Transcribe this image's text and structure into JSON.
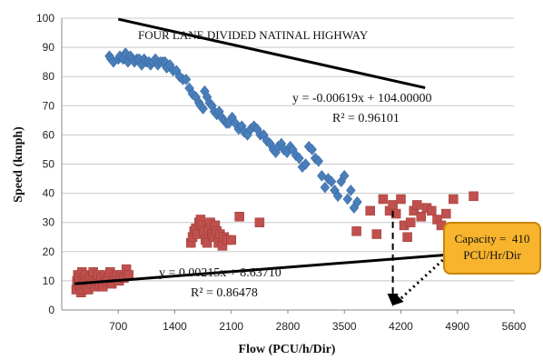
{
  "chart_data": {
    "type": "scatter",
    "title": "FOUR LANE DIVIDED NATINAL HIGHWAY",
    "xlabel": "Flow (PCU/h/Dir)",
    "ylabel": "Speed (kmph)",
    "xlim": [
      0,
      5600
    ],
    "ylim": [
      0,
      100
    ],
    "xticks": [
      "700",
      "1400",
      "2100",
      "2800",
      "3500",
      "4200",
      "4900",
      "5600"
    ],
    "yticks": [
      "0",
      "10",
      "20",
      "30",
      "40",
      "50",
      "60",
      "70",
      "80",
      "90",
      "100"
    ],
    "grid": "horizontal",
    "series": [
      {
        "color": "#4a7ebb",
        "marker": "diamond",
        "points": [
          [
            590,
            87
          ],
          [
            610,
            86
          ],
          [
            640,
            85
          ],
          [
            700,
            86
          ],
          [
            720,
            87
          ],
          [
            760,
            86
          ],
          [
            790,
            88
          ],
          [
            820,
            85
          ],
          [
            850,
            87
          ],
          [
            880,
            86
          ],
          [
            900,
            85
          ],
          [
            930,
            86
          ],
          [
            960,
            86
          ],
          [
            990,
            84
          ],
          [
            1020,
            86
          ],
          [
            1050,
            85
          ],
          [
            1080,
            85
          ],
          [
            1100,
            84
          ],
          [
            1130,
            85
          ],
          [
            1160,
            86
          ],
          [
            1190,
            84
          ],
          [
            1220,
            85
          ],
          [
            1250,
            85
          ],
          [
            1280,
            85
          ],
          [
            1300,
            83
          ],
          [
            1340,
            84
          ],
          [
            1380,
            82
          ],
          [
            1420,
            82
          ],
          [
            1460,
            80
          ],
          [
            1500,
            79
          ],
          [
            1540,
            79
          ],
          [
            1580,
            76
          ],
          [
            1620,
            74
          ],
          [
            1660,
            73
          ],
          [
            1700,
            71
          ],
          [
            1720,
            70
          ],
          [
            1750,
            69
          ],
          [
            1770,
            75
          ],
          [
            1800,
            73
          ],
          [
            1830,
            71
          ],
          [
            1860,
            70
          ],
          [
            1890,
            68
          ],
          [
            1920,
            67
          ],
          [
            1950,
            68
          ],
          [
            1980,
            66
          ],
          [
            2010,
            65
          ],
          [
            2040,
            64
          ],
          [
            2070,
            64
          ],
          [
            2110,
            66
          ],
          [
            2150,
            64
          ],
          [
            2190,
            62
          ],
          [
            2230,
            63
          ],
          [
            2260,
            61
          ],
          [
            2300,
            60
          ],
          [
            2340,
            62
          ],
          [
            2380,
            63
          ],
          [
            2420,
            62
          ],
          [
            2460,
            60
          ],
          [
            2500,
            60
          ],
          [
            2540,
            58
          ],
          [
            2580,
            57
          ],
          [
            2620,
            55
          ],
          [
            2650,
            54
          ],
          [
            2680,
            56
          ],
          [
            2720,
            57
          ],
          [
            2750,
            55
          ],
          [
            2790,
            54
          ],
          [
            2830,
            56
          ],
          [
            2860,
            55
          ],
          [
            2900,
            53
          ],
          [
            2940,
            52
          ],
          [
            2980,
            49
          ],
          [
            3020,
            50
          ],
          [
            3060,
            56
          ],
          [
            3100,
            55
          ],
          [
            3140,
            52
          ],
          [
            3180,
            51
          ],
          [
            3220,
            46
          ],
          [
            3260,
            42
          ],
          [
            3300,
            45
          ],
          [
            3340,
            44
          ],
          [
            3380,
            41
          ],
          [
            3420,
            39
          ],
          [
            3460,
            44
          ],
          [
            3500,
            46
          ],
          [
            3540,
            38
          ],
          [
            3580,
            41
          ],
          [
            3620,
            35
          ],
          [
            3660,
            37
          ]
        ]
      },
      {
        "color": "#c0504d",
        "marker": "square",
        "points": [
          [
            180,
            7
          ],
          [
            190,
            10
          ],
          [
            200,
            12
          ],
          [
            210,
            9
          ],
          [
            220,
            11
          ],
          [
            230,
            8
          ],
          [
            240,
            6
          ],
          [
            250,
            13
          ],
          [
            260,
            10
          ],
          [
            270,
            7
          ],
          [
            280,
            11
          ],
          [
            290,
            9
          ],
          [
            300,
            12
          ],
          [
            310,
            8
          ],
          [
            320,
            10
          ],
          [
            330,
            7
          ],
          [
            350,
            11
          ],
          [
            370,
            9
          ],
          [
            390,
            13
          ],
          [
            410,
            8
          ],
          [
            430,
            10
          ],
          [
            450,
            12
          ],
          [
            470,
            9
          ],
          [
            490,
            11
          ],
          [
            510,
            8
          ],
          [
            540,
            12
          ],
          [
            560,
            10
          ],
          [
            580,
            11
          ],
          [
            600,
            13
          ],
          [
            620,
            9
          ],
          [
            650,
            11
          ],
          [
            680,
            12
          ],
          [
            710,
            10
          ],
          [
            740,
            12
          ],
          [
            770,
            11
          ],
          [
            800,
            14
          ],
          [
            830,
            12
          ],
          [
            1600,
            23
          ],
          [
            1620,
            25
          ],
          [
            1640,
            27
          ],
          [
            1660,
            28
          ],
          [
            1680,
            26
          ],
          [
            1700,
            30
          ],
          [
            1720,
            31
          ],
          [
            1740,
            29
          ],
          [
            1760,
            27
          ],
          [
            1780,
            24
          ],
          [
            1800,
            23
          ],
          [
            1820,
            28
          ],
          [
            1840,
            30
          ],
          [
            1860,
            26
          ],
          [
            1880,
            25
          ],
          [
            1900,
            29
          ],
          [
            1920,
            27
          ],
          [
            1940,
            23
          ],
          [
            1960,
            26
          ],
          [
            1990,
            22
          ],
          [
            2010,
            25
          ],
          [
            2050,
            24
          ],
          [
            2100,
            24
          ],
          [
            2200,
            32
          ],
          [
            2450,
            30
          ],
          [
            3650,
            27
          ],
          [
            3820,
            34
          ],
          [
            3900,
            26
          ],
          [
            3980,
            38
          ],
          [
            4060,
            34
          ],
          [
            4100,
            36
          ],
          [
            4140,
            33
          ],
          [
            4200,
            38
          ],
          [
            4240,
            29
          ],
          [
            4280,
            25
          ],
          [
            4320,
            30
          ],
          [
            4360,
            34
          ],
          [
            4400,
            36
          ],
          [
            4450,
            32
          ],
          [
            4520,
            35
          ],
          [
            4580,
            34
          ],
          [
            4650,
            31
          ],
          [
            4700,
            29
          ],
          [
            4760,
            33
          ],
          [
            4850,
            38
          ],
          [
            5100,
            39
          ]
        ]
      }
    ],
    "trendlines": [
      {
        "equation": "y = -0.00619x + 104.00000",
        "r2": "R² = 0.96101",
        "x_range": [
          700,
          4500
        ]
      },
      {
        "equation": "y = 0.00215x + 8.63710",
        "r2": "R² = 0.86478",
        "x_range": [
          160,
          5100
        ]
      }
    ],
    "annotation": {
      "line1": "Capacity =",
      "value": "410",
      "line2": "PCU/Hr/Dir",
      "x": 4100
    }
  }
}
